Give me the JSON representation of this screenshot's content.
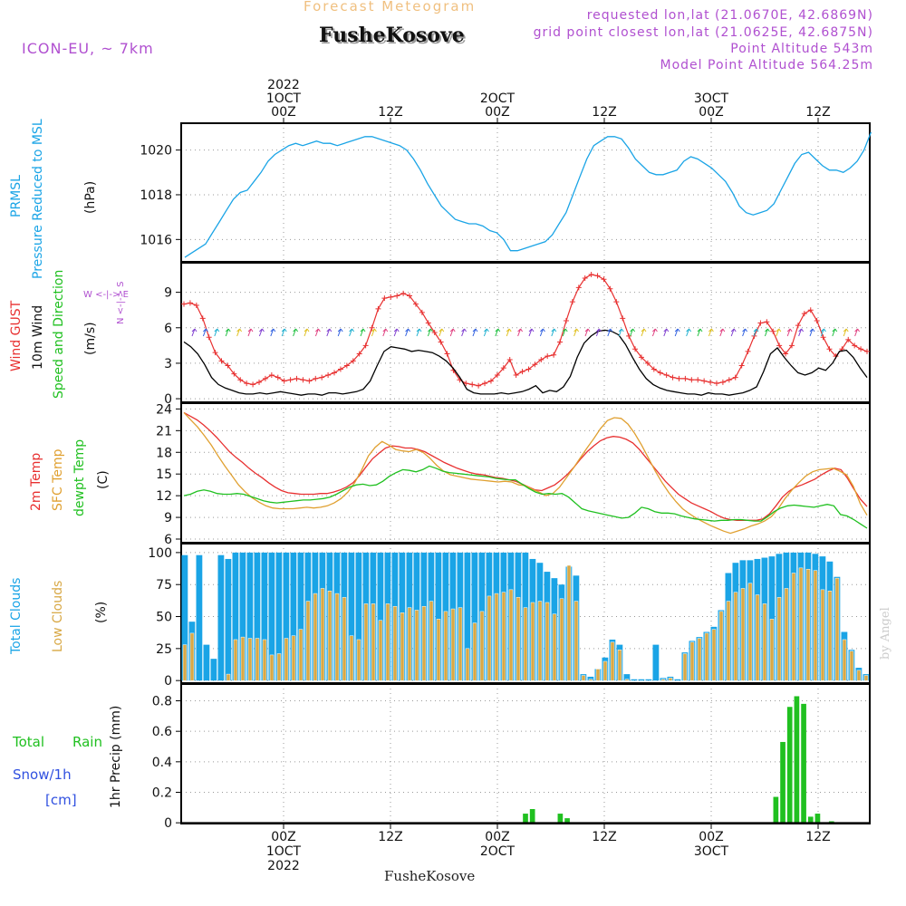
{
  "header": {
    "forecast_label": "Forecast Meteogram",
    "location_title": "FusheKosove",
    "model": "ICON-EU, ~ 7km",
    "requested_point": "requested lon,lat (21.0670E, 42.6869N)",
    "closest_point": "grid point closest lon,lat (21.0625E, 42.6875N)",
    "point_altitude": "Point Altitude 543m",
    "model_point_altitude": "Model Point Altitude 564.25m"
  },
  "footer": {
    "location": "FusheKosove",
    "watermark": "by Angel"
  },
  "time_axis": {
    "top": [
      {
        "t": 0,
        "lines": [
          "2022",
          "1OCT",
          "00Z"
        ]
      },
      {
        "t": 12,
        "lines": [
          "12Z"
        ]
      },
      {
        "t": 24,
        "lines": [
          "2OCT",
          "00Z"
        ]
      },
      {
        "t": 36,
        "lines": [
          "12Z"
        ]
      },
      {
        "t": 48,
        "lines": [
          "3OCT",
          "00Z"
        ]
      },
      {
        "t": 60,
        "lines": [
          "12Z"
        ]
      }
    ],
    "bottom": [
      {
        "t": 0,
        "lines": [
          "00Z",
          "1OCT",
          "2022"
        ]
      },
      {
        "t": 12,
        "lines": [
          "12Z"
        ]
      },
      {
        "t": 24,
        "lines": [
          "00Z",
          "2OCT"
        ]
      },
      {
        "t": 36,
        "lines": [
          "12Z"
        ]
      },
      {
        "t": 48,
        "lines": [
          "00Z",
          "3OCT"
        ]
      },
      {
        "t": 60,
        "lines": [
          "12Z"
        ]
      }
    ]
  },
  "panel_labels": {
    "pressure": {
      "title1": "PRMSL",
      "title2": "Pressure Reduced to MSL",
      "unit": "(hPa)"
    },
    "wind": {
      "gust": "Wind GUST",
      "wind10": "10m Wind",
      "speeddir": "Speed and Direction",
      "unit": "(m/s)",
      "compass_ns": "N <-|-> S",
      "compass_we": "W <-|-> E"
    },
    "temp": {
      "t2m": "2m Temp",
      "sfc": "SFC Temp",
      "dewpt": "dewpt Temp",
      "unit": "(C)"
    },
    "clouds": {
      "total": "Total Clouds",
      "low": "Low Clouds",
      "unit": "(%)"
    },
    "precip": {
      "total": "Total",
      "rain": "Rain",
      "snow": "Snow/1h",
      "cm": "[cm]",
      "axis": "1hr Precip (mm)"
    }
  },
  "colors": {
    "pressure": "#1aa4e6",
    "gust": "#e83030",
    "wind": "#000000",
    "t2m": "#e83030",
    "sfc": "#e0a030",
    "dewpt": "#20c020",
    "total_cloud": "#1aa4e6",
    "low_cloud": "#d8a845",
    "rain": "#20c020",
    "magenta": "#b050d0"
  },
  "chart_data": [
    {
      "type": "line",
      "ylim": [
        1015,
        1021.2
      ],
      "yticks": [
        1016,
        1018,
        1020
      ],
      "series": [
        {
          "values": [
            1015.2,
            1015.4,
            1015.6,
            1015.8,
            1016.3,
            1016.8,
            1017.3,
            1017.8,
            1018.1,
            1018.2,
            1018.6,
            1019.0,
            1019.5,
            1019.8,
            1020.0,
            1020.2,
            1020.3,
            1020.2,
            1020.3,
            1020.4,
            1020.3,
            1020.3,
            1020.2,
            1020.3,
            1020.4,
            1020.5,
            1020.6,
            1020.6,
            1020.5,
            1020.4,
            1020.3,
            1020.2,
            1020.0,
            1019.6,
            1019.1,
            1018.5,
            1018.0,
            1017.5,
            1017.2,
            1016.9,
            1016.8,
            1016.7,
            1016.7,
            1016.6,
            1016.4,
            1016.3,
            1016.0,
            1015.5,
            1015.5,
            1015.6,
            1015.7,
            1015.8,
            1015.9,
            1016.2,
            1016.7,
            1017.2,
            1018.0,
            1018.8,
            1019.6,
            1020.2,
            1020.4,
            1020.6,
            1020.6,
            1020.5,
            1020.1,
            1019.6,
            1019.3,
            1019.0,
            1018.9,
            1018.9,
            1019.0,
            1019.1,
            1019.5,
            1019.7,
            1019.6,
            1019.4,
            1019.2,
            1018.9,
            1018.6,
            1018.1,
            1017.5,
            1017.2,
            1017.1,
            1017.2,
            1017.3,
            1017.6,
            1018.2,
            1018.8,
            1019.4,
            1019.8,
            1019.9,
            1019.6,
            1019.3,
            1019.1,
            1019.1,
            1019.0,
            1019.2,
            1019.5,
            1020.0,
            1020.8
          ]
        }
      ]
    },
    {
      "type": "line",
      "ylim": [
        -0.3,
        11.5
      ],
      "yticks": [
        0,
        3,
        6,
        9
      ],
      "series": [
        {
          "values": [
            8.0,
            8.1,
            7.9,
            6.8,
            5.2,
            3.9,
            3.2,
            2.8,
            2.1,
            1.6,
            1.3,
            1.2,
            1.4,
            1.7,
            2.0,
            1.8,
            1.5,
            1.6,
            1.7,
            1.6,
            1.5,
            1.7,
            1.8,
            2.0,
            2.2,
            2.5,
            2.8,
            3.2,
            3.8,
            4.5,
            6.0,
            7.6,
            8.5,
            8.6,
            8.7,
            8.9,
            8.7,
            8.0,
            7.3,
            6.4,
            5.6,
            4.8,
            3.8,
            2.4,
            1.6,
            1.3,
            1.2,
            1.1,
            1.3,
            1.5,
            2.0,
            2.6,
            3.3,
            2.0,
            2.3,
            2.5,
            2.9,
            3.3,
            3.6,
            3.7,
            4.8,
            6.6,
            8.2,
            9.4,
            10.2,
            10.5,
            10.4,
            10.1,
            9.3,
            8.2,
            6.8,
            5.3,
            4.2,
            3.5,
            3.0,
            2.5,
            2.2,
            2.0,
            1.8,
            1.7,
            1.7,
            1.6,
            1.6,
            1.5,
            1.4,
            1.3,
            1.4,
            1.6,
            1.8,
            2.8,
            4.0,
            5.3,
            6.4,
            6.5,
            5.7,
            4.5,
            3.8,
            4.5,
            6.2,
            7.2,
            7.5,
            6.6,
            5.2,
            4.2,
            3.6,
            4.2,
            5.0,
            4.5,
            4.2,
            4.0
          ]
        },
        {
          "values": [
            4.8,
            4.4,
            3.8,
            2.9,
            1.8,
            1.2,
            0.9,
            0.7,
            0.5,
            0.4,
            0.4,
            0.5,
            0.4,
            0.5,
            0.6,
            0.5,
            0.4,
            0.3,
            0.4,
            0.4,
            0.3,
            0.5,
            0.5,
            0.4,
            0.5,
            0.6,
            0.8,
            1.5,
            2.8,
            4.0,
            4.4,
            4.3,
            4.2,
            4.0,
            4.1,
            4.0,
            3.9,
            3.6,
            3.2,
            2.6,
            1.8,
            0.8,
            0.5,
            0.4,
            0.4,
            0.4,
            0.5,
            0.4,
            0.5,
            0.6,
            0.8,
            1.1,
            0.5,
            0.7,
            0.6,
            1.0,
            1.9,
            3.5,
            4.7,
            5.3,
            5.7,
            5.8,
            5.7,
            5.4,
            4.6,
            3.5,
            2.5,
            1.7,
            1.2,
            0.9,
            0.7,
            0.6,
            0.5,
            0.4,
            0.4,
            0.3,
            0.5,
            0.4,
            0.4,
            0.3,
            0.4,
            0.5,
            0.7,
            1.0,
            2.3,
            3.8,
            4.3,
            3.5,
            2.8,
            2.2,
            2.0,
            2.2,
            2.6,
            2.4,
            3.0,
            4.0,
            4.1,
            3.5,
            2.6,
            1.8
          ]
        }
      ]
    },
    {
      "type": "line",
      "ylim": [
        5.5,
        24.8
      ],
      "yticks": [
        6,
        9,
        12,
        15,
        18,
        21,
        24
      ],
      "series": [
        {
          "values": [
            23.5,
            23.0,
            22.5,
            21.8,
            21.0,
            20.1,
            19.1,
            18.1,
            17.3,
            16.6,
            15.8,
            15.1,
            14.5,
            13.8,
            13.2,
            12.7,
            12.4,
            12.3,
            12.2,
            12.2,
            12.2,
            12.3,
            12.3,
            12.5,
            12.8,
            13.2,
            13.8,
            14.8,
            16.0,
            17.1,
            17.9,
            18.6,
            18.9,
            18.8,
            18.6,
            18.6,
            18.4,
            18.1,
            17.6,
            17.1,
            16.6,
            16.2,
            15.8,
            15.5,
            15.2,
            15.0,
            14.9,
            14.7,
            14.5,
            14.4,
            14.2,
            14.0,
            13.6,
            13.2,
            12.8,
            12.7,
            13.1,
            13.5,
            14.2,
            15.0,
            16.0,
            17.1,
            18.1,
            18.9,
            19.6,
            20.0,
            20.2,
            20.1,
            19.8,
            19.3,
            18.4,
            17.3,
            16.2,
            15.1,
            14.0,
            13.1,
            12.2,
            11.6,
            11.0,
            10.6,
            10.2,
            9.8,
            9.3,
            8.9,
            8.7,
            8.6,
            8.6,
            8.6,
            8.6,
            8.8,
            9.5,
            10.6,
            11.8,
            12.6,
            13.2,
            13.5,
            13.9,
            14.3,
            14.9,
            15.4,
            15.8,
            15.6,
            14.4,
            12.9,
            11.5,
            10.5
          ]
        },
        {
          "values": [
            23.5,
            22.5,
            21.5,
            20.3,
            19.0,
            17.5,
            16.1,
            14.8,
            13.5,
            12.5,
            11.7,
            11.1,
            10.6,
            10.3,
            10.2,
            10.2,
            10.2,
            10.3,
            10.4,
            10.3,
            10.4,
            10.6,
            11.0,
            11.6,
            12.5,
            13.8,
            15.5,
            17.5,
            18.7,
            19.5,
            19.0,
            18.4,
            18.2,
            18.1,
            18.4,
            18.0,
            17.2,
            16.2,
            15.4,
            14.9,
            14.7,
            14.5,
            14.3,
            14.2,
            14.1,
            14.0,
            13.9,
            14.0,
            13.9,
            13.5,
            13.4,
            12.9,
            12.5,
            12.0,
            12.3,
            13.2,
            14.5,
            15.8,
            17.2,
            18.6,
            19.9,
            21.3,
            22.4,
            22.8,
            22.7,
            21.9,
            20.6,
            19.0,
            17.2,
            15.4,
            13.8,
            12.4,
            11.2,
            10.2,
            9.5,
            8.9,
            8.4,
            7.9,
            7.5,
            7.1,
            6.8,
            7.1,
            7.4,
            7.8,
            8.1,
            8.5,
            9.1,
            10.2,
            11.6,
            12.8,
            13.8,
            14.7,
            15.3,
            15.6,
            15.7,
            15.8,
            15.4,
            14.9,
            13.3,
            10.9,
            9.3
          ]
        },
        {
          "values": [
            12.0,
            12.2,
            12.6,
            12.8,
            12.6,
            12.3,
            12.2,
            12.2,
            12.3,
            12.2,
            11.9,
            11.6,
            11.3,
            11.1,
            11.0,
            11.1,
            11.2,
            11.3,
            11.4,
            11.4,
            11.5,
            11.6,
            11.8,
            12.2,
            12.7,
            13.2,
            13.5,
            13.6,
            13.4,
            13.5,
            14.0,
            14.7,
            15.2,
            15.6,
            15.5,
            15.3,
            15.6,
            16.1,
            15.8,
            15.4,
            15.2,
            15.1,
            15.0,
            14.9,
            14.8,
            14.7,
            14.6,
            14.4,
            14.3,
            14.2,
            14.2,
            13.6,
            13.0,
            12.5,
            12.2,
            12.3,
            12.2,
            12.3,
            11.8,
            11.0,
            10.2,
            9.9,
            9.7,
            9.5,
            9.3,
            9.1,
            8.9,
            9.0,
            9.6,
            10.4,
            10.2,
            9.8,
            9.6,
            9.6,
            9.5,
            9.2,
            9.0,
            8.8,
            8.7,
            8.6,
            8.5,
            8.6,
            8.6,
            8.7,
            8.7,
            8.6,
            8.5,
            8.5,
            9.1,
            9.8,
            10.3,
            10.6,
            10.7,
            10.6,
            10.5,
            10.4,
            10.6,
            10.8,
            10.6,
            9.4,
            9.2,
            8.7,
            8.1,
            7.5
          ]
        }
      ]
    },
    {
      "type": "bar",
      "ylim": [
        -2,
        107
      ],
      "yticks": [
        0,
        25,
        50,
        75,
        100
      ],
      "series": [
        {
          "values": [
            98,
            46,
            98,
            28,
            17,
            98,
            95,
            100,
            100,
            100,
            100,
            100,
            100,
            100,
            100,
            100,
            100,
            100,
            100,
            100,
            100,
            100,
            100,
            100,
            100,
            100,
            100,
            100,
            100,
            100,
            100,
            100,
            100,
            100,
            100,
            100,
            100,
            100,
            100,
            100,
            100,
            100,
            100,
            100,
            100,
            100,
            100,
            100,
            95,
            92,
            85,
            80,
            75,
            89,
            82,
            5,
            3,
            9,
            18,
            32,
            28,
            5,
            1,
            1,
            1,
            28,
            2,
            3,
            1,
            22,
            31,
            34,
            38,
            42,
            55,
            84,
            92,
            94,
            94,
            95,
            96,
            97,
            99,
            100,
            100,
            100,
            100,
            99,
            97,
            93,
            81,
            38,
            24,
            10,
            5
          ]
        },
        {
          "values": [
            28,
            37,
            0,
            0,
            0,
            0,
            5,
            32,
            34,
            33,
            33,
            32,
            20,
            21,
            33,
            35,
            40,
            62,
            68,
            72,
            70,
            68,
            65,
            35,
            32,
            60,
            60,
            47,
            60,
            58,
            53,
            57,
            55,
            58,
            62,
            48,
            54,
            56,
            57,
            25,
            45,
            54,
            66,
            68,
            69,
            71,
            65,
            57,
            61,
            62,
            61,
            52,
            64,
            90,
            62,
            4,
            1,
            9,
            15,
            30,
            24,
            1,
            0,
            0,
            0,
            0,
            1,
            2,
            0,
            21,
            30,
            33,
            37,
            40,
            54,
            62,
            69,
            72,
            76,
            67,
            60,
            48,
            65,
            72,
            84,
            88,
            87,
            86,
            71,
            70,
            80,
            32,
            23,
            8,
            4
          ]
        }
      ]
    },
    {
      "type": "bar",
      "ylim": [
        -0.005,
        0.91
      ],
      "yticks": [
        0,
        0.2,
        0.4,
        0.6,
        0.8
      ],
      "series": [
        {
          "values": [
            0,
            0,
            0,
            0,
            0,
            0,
            0,
            0,
            0,
            0,
            0,
            0,
            0,
            0,
            0,
            0,
            0,
            0,
            0,
            0,
            0,
            0,
            0,
            0,
            0,
            0,
            0,
            0,
            0,
            0,
            0,
            0,
            0,
            0,
            0,
            0,
            0,
            0,
            0,
            0,
            0,
            0,
            0,
            0,
            0,
            0,
            0,
            0,
            0,
            0.06,
            0.09,
            0,
            0,
            0,
            0.06,
            0.03,
            0,
            0,
            0,
            0,
            0,
            0,
            0,
            0,
            0,
            0,
            0,
            0,
            0,
            0,
            0,
            0,
            0,
            0,
            0,
            0,
            0,
            0,
            0,
            0,
            0,
            0,
            0,
            0,
            0,
            0.17,
            0.53,
            0.76,
            0.83,
            0.78,
            0.04,
            0.06,
            0,
            0.01,
            0,
            0,
            0,
            0,
            0
          ]
        }
      ]
    }
  ]
}
